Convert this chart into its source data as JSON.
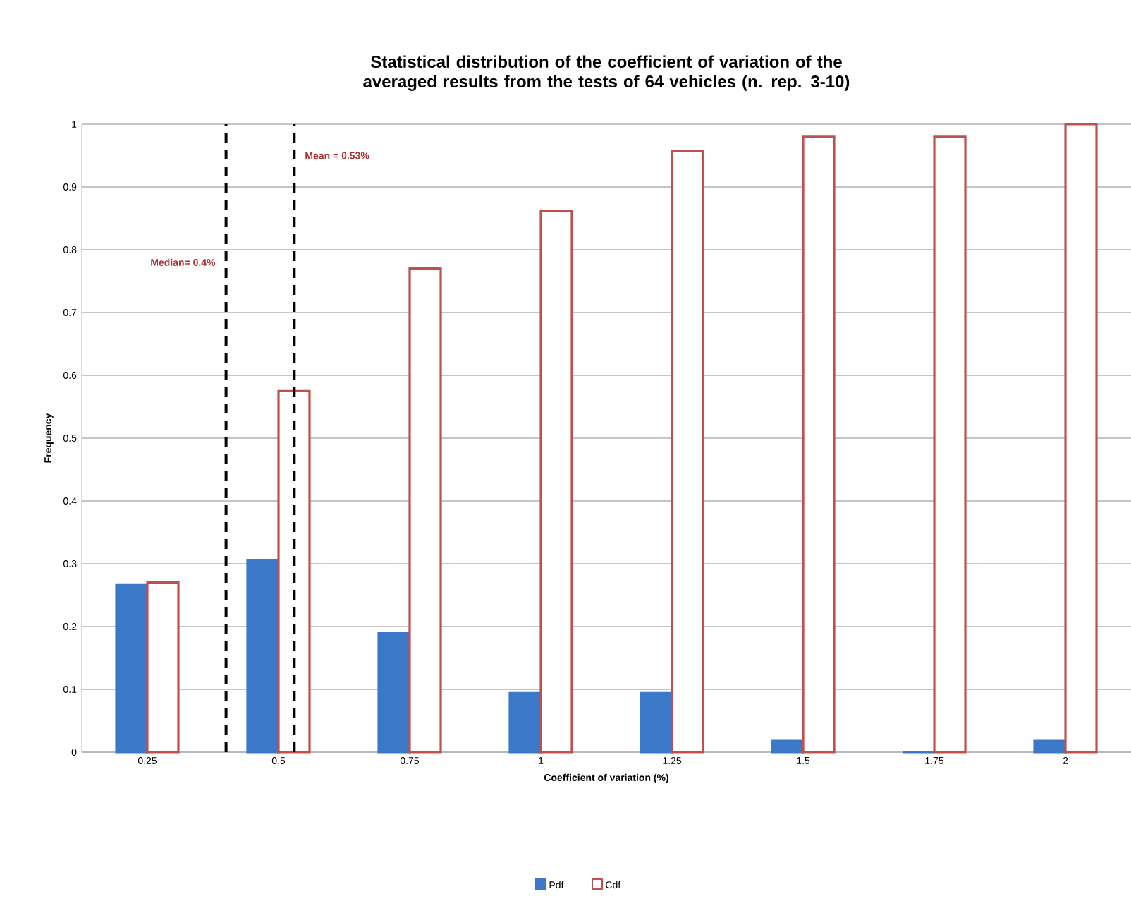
{
  "chart_data": {
    "type": "bar",
    "title": "Statistical distribution of the coefficient of variation of the averaged results from the tests of 64 vehicles (n. rep. 3-10)",
    "xlabel": "Coefficient of variation (%)",
    "ylabel": "Frequency",
    "x": [
      0.25,
      0.5,
      0.75,
      1,
      1.25,
      1.5,
      1.75,
      2
    ],
    "xlim": [
      0.125,
      2.125
    ],
    "xticks": [
      0.25,
      0.5,
      0.75,
      1,
      1.25,
      1.5,
      1.75,
      2
    ],
    "ylim": [
      0,
      1
    ],
    "yticks": [
      0,
      0.1,
      0.2,
      0.3,
      0.4,
      0.5,
      0.6,
      0.7,
      0.8,
      0.9,
      1
    ],
    "series": [
      {
        "name": "Pdf",
        "color": "#3c78c8",
        "values": [
          0.267,
          0.306,
          0.19,
          0.094,
          0.094,
          0.018,
          0,
          0.018
        ]
      },
      {
        "name": "Cdf",
        "color": "#c0504d",
        "values": [
          0.27,
          0.575,
          0.77,
          0.862,
          0.957,
          0.98,
          0.98,
          1.0
        ]
      }
    ],
    "ref_lines": [
      {
        "axis": "x",
        "value": 0.4,
        "label": "Median= 0.4%",
        "color": "#000000",
        "line_style": "dashed"
      },
      {
        "axis": "x",
        "value": 0.53,
        "label": "Mean = 0.53%",
        "color": "#000000",
        "line_style": "dashed"
      }
    ],
    "grid": "y",
    "legend": "bottom"
  }
}
